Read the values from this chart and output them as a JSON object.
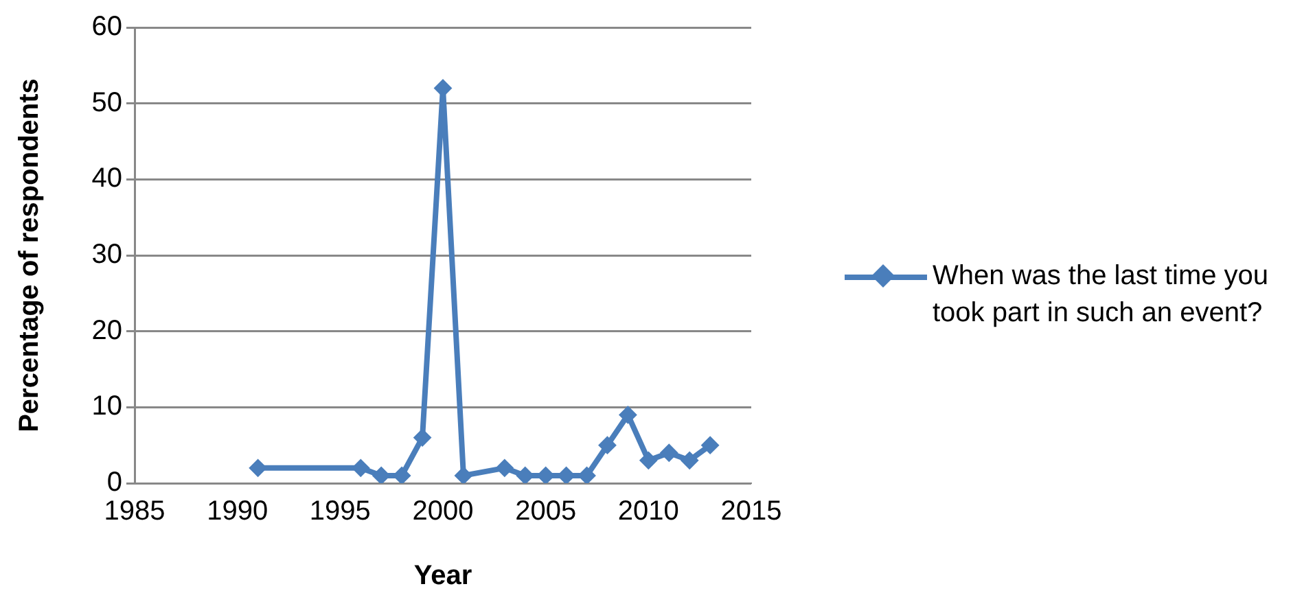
{
  "chart_data": {
    "type": "line",
    "xlabel": "Year",
    "ylabel": "Percentage of respondents",
    "x": [
      1991,
      1996,
      1997,
      1998,
      1999,
      2000,
      2001,
      2003,
      2004,
      2005,
      2006,
      2007,
      2008,
      2009,
      2010,
      2011,
      2012,
      2013
    ],
    "series": [
      {
        "name": "When was the last time you took part in such an event?",
        "color": "#4a7ebb",
        "values": [
          2,
          2,
          1,
          1,
          6,
          52,
          1,
          2,
          1,
          1,
          1,
          1,
          5,
          9,
          3,
          4,
          3,
          5
        ]
      }
    ],
    "xlim": [
      1985,
      2015
    ],
    "xticks": [
      1985,
      1990,
      1995,
      2000,
      2005,
      2010,
      2015
    ],
    "ylim": [
      0,
      60
    ],
    "yticks": [
      0,
      10,
      20,
      30,
      40,
      50,
      60
    ],
    "grid": "y",
    "legend": "right",
    "marker": "diamond",
    "line_style": "solid"
  }
}
